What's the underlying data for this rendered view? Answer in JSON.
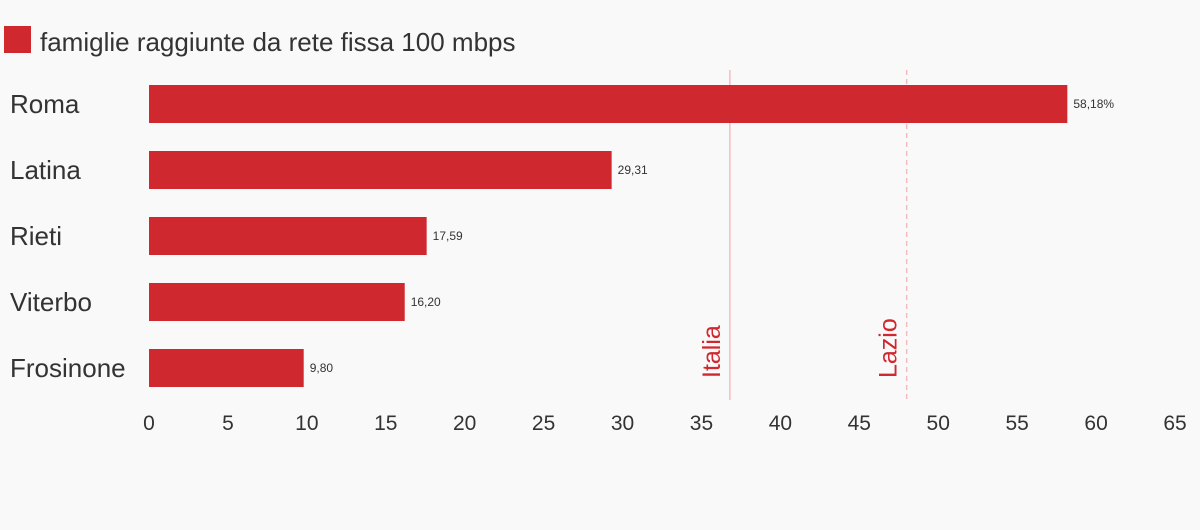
{
  "chart_data": {
    "type": "bar",
    "orientation": "horizontal",
    "legend": {
      "label": "famiglie raggiunte da rete fissa 100 mbps",
      "color": "#d0282f",
      "placement": "top-left"
    },
    "categories": [
      "Roma",
      "Latina",
      "Rieti",
      "Viterbo",
      "Frosinone"
    ],
    "series": [
      {
        "name": "famiglie raggiunte da rete fissa 100 mbps",
        "values": [
          58.18,
          29.31,
          17.59,
          16.2,
          9.8
        ],
        "value_labels": [
          "58,18%",
          "29,31",
          "17,59",
          "16,20",
          "9,80"
        ],
        "color": "#d0282f"
      }
    ],
    "xlim": [
      0,
      65
    ],
    "xticks": [
      0,
      5,
      10,
      15,
      20,
      25,
      30,
      35,
      40,
      45,
      50,
      55,
      60,
      65
    ],
    "reference_lines": [
      {
        "label": "Italia",
        "value": 36.8,
        "style": "solid",
        "color": "#f4bcbe",
        "label_color": "#d0282f"
      },
      {
        "label": "Lazio",
        "value": 48.0,
        "style": "dashed",
        "color": "#f4bcbe",
        "label_color": "#d0282f"
      }
    ],
    "grid": false
  }
}
